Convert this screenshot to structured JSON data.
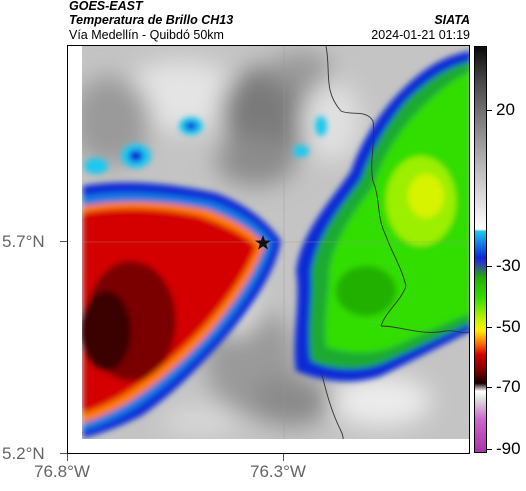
{
  "header": {
    "satellite": "GOES-EAST",
    "product": "Temperatura de Brillo CH13",
    "region": "Vía Medellín - Quibdó 50km",
    "organization": "SIATA",
    "timestamp": "2024-01-21 01:19"
  },
  "axes": {
    "lat_ticks": [
      "5.7°N",
      "5.2°N"
    ],
    "lon_ticks": [
      "76.8°W",
      "76.3°W"
    ]
  },
  "colorbar": {
    "labels": [
      "20",
      "-30",
      "-50",
      "-70",
      "-90"
    ]
  },
  "colors": {
    "very_cold": "#3b0000",
    "cold": "#d40000",
    "orange": "#ff7a00",
    "yellow": "#ffee00",
    "green": "#33dd00",
    "blue": "#0a2ad6",
    "cyan": "#1ec8f0",
    "warm": "#bdbdbd",
    "boundary": "#333333"
  },
  "map": {
    "marker_icon": "star-icon"
  }
}
